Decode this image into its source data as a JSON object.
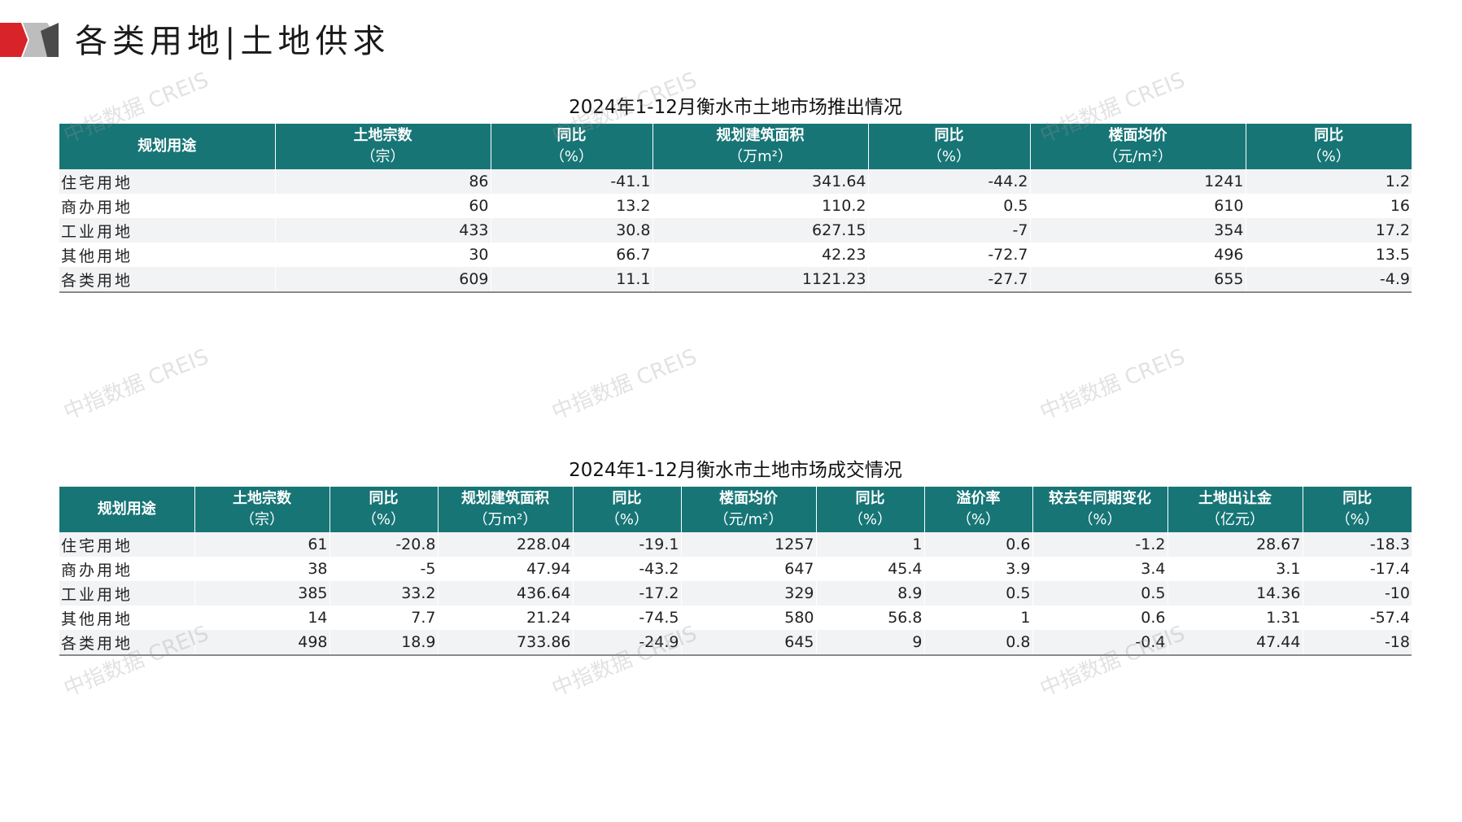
{
  "header": {
    "title": "各类用地|土地供求"
  },
  "table1": {
    "caption": "2024年1-12月衡水市土地市场推出情况",
    "columns": [
      {
        "name": "规划用途",
        "unit": ""
      },
      {
        "name": "土地宗数",
        "unit": "（宗）"
      },
      {
        "name": "同比",
        "unit": "（%）"
      },
      {
        "name": "规划建筑面积",
        "unit": "（万m²）"
      },
      {
        "name": "同比",
        "unit": "（%）"
      },
      {
        "name": "楼面均价",
        "unit": "（元/m²）"
      },
      {
        "name": "同比",
        "unit": "（%）"
      }
    ],
    "rows": [
      [
        "住宅用地",
        "86",
        "-41.1",
        "341.64",
        "-44.2",
        "1241",
        "1.2"
      ],
      [
        "商办用地",
        "60",
        "13.2",
        "110.2",
        "0.5",
        "610",
        "16"
      ],
      [
        "工业用地",
        "433",
        "30.8",
        "627.15",
        "-7",
        "354",
        "17.2"
      ],
      [
        "其他用地",
        "30",
        "66.7",
        "42.23",
        "-72.7",
        "496",
        "13.5"
      ],
      [
        "各类用地",
        "609",
        "11.1",
        "1121.23",
        "-27.7",
        "655",
        "-4.9"
      ]
    ]
  },
  "table2": {
    "caption": "2024年1-12月衡水市土地市场成交情况",
    "columns": [
      {
        "name": "规划用途",
        "unit": ""
      },
      {
        "name": "土地宗数",
        "unit": "（宗）"
      },
      {
        "name": "同比",
        "unit": "（%）"
      },
      {
        "name": "规划建筑面积",
        "unit": "（万m²）"
      },
      {
        "name": "同比",
        "unit": "（%）"
      },
      {
        "name": "楼面均价",
        "unit": "（元/m²）"
      },
      {
        "name": "同比",
        "unit": "（%）"
      },
      {
        "name": "溢价率",
        "unit": "（%）"
      },
      {
        "name": "较去年同期变化",
        "unit": "（%）"
      },
      {
        "name": "土地出让金",
        "unit": "（亿元）"
      },
      {
        "name": "同比",
        "unit": "（%）"
      }
    ],
    "rows": [
      [
        "住宅用地",
        "61",
        "-20.8",
        "228.04",
        "-19.1",
        "1257",
        "1",
        "0.6",
        "-1.2",
        "28.67",
        "-18.3"
      ],
      [
        "商办用地",
        "38",
        "-5",
        "47.94",
        "-43.2",
        "647",
        "45.4",
        "3.9",
        "3.4",
        "3.1",
        "-17.4"
      ],
      [
        "工业用地",
        "385",
        "33.2",
        "436.64",
        "-17.2",
        "329",
        "8.9",
        "0.5",
        "0.5",
        "14.36",
        "-10"
      ],
      [
        "其他用地",
        "14",
        "7.7",
        "21.24",
        "-74.5",
        "580",
        "56.8",
        "1",
        "0.6",
        "1.31",
        "-57.4"
      ],
      [
        "各类用地",
        "498",
        "18.9",
        "733.86",
        "-24.9",
        "645",
        "9",
        "0.8",
        "-0.4",
        "47.44",
        "-18"
      ]
    ]
  },
  "watermark": "中指数据 CREIS",
  "colors": {
    "header_bg": "#177576",
    "accent_red": "#d9232a",
    "stripe": "#f2f3f5"
  }
}
